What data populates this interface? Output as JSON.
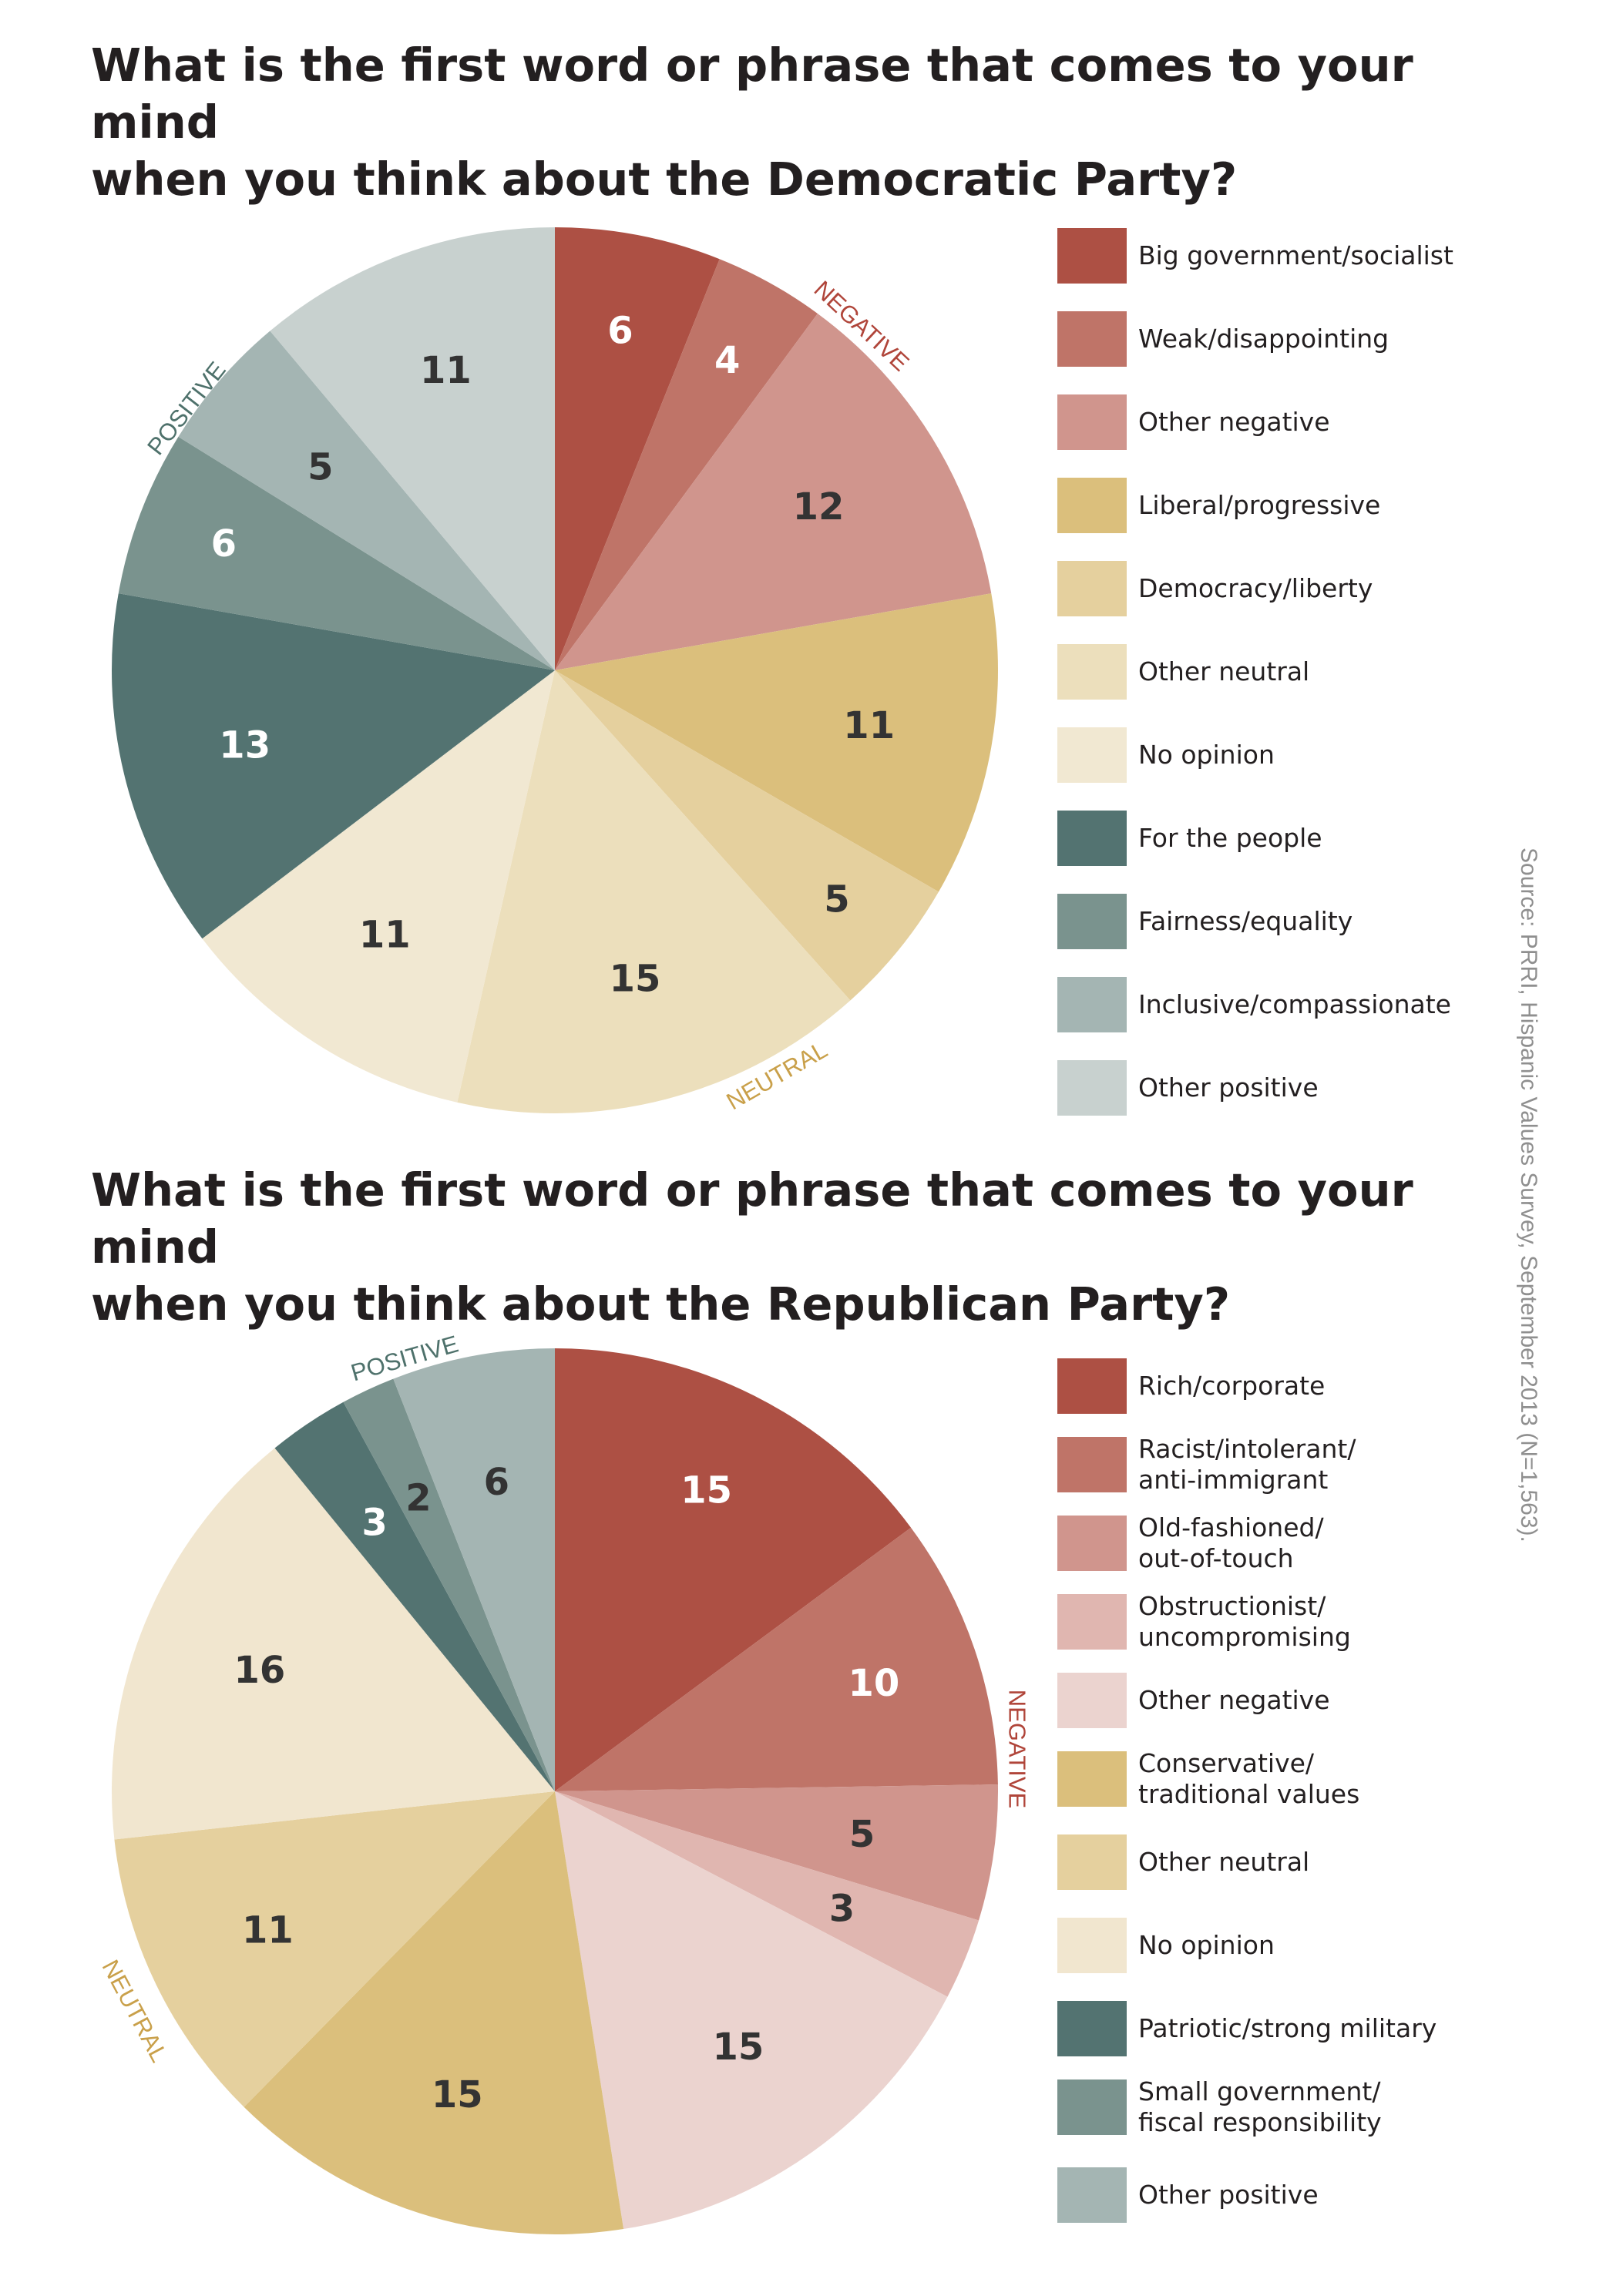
{
  "source": "Source: PRRI, Hispanic Values Survey, September 2013 (N=1,563).",
  "chart_data": [
    {
      "type": "pie",
      "title": "What is the first word or phrase that comes to your mind\nwhen you think about the Democratic Party?",
      "slices": [
        {
          "label": "Big government/socialist",
          "value": 6,
          "color": "#ad5044",
          "text_color": "#ffffff"
        },
        {
          "label": "Weak/disappointing",
          "value": 4,
          "color": "#bf7468",
          "text_color": "#ffffff"
        },
        {
          "label": "Other negative",
          "value": 12,
          "color": "#d0958d",
          "text_color": "#333333"
        },
        {
          "label": "Liberal/progressive",
          "value": 11,
          "color": "#dbbf7c",
          "text_color": "#333333"
        },
        {
          "label": "Democracy/liberty",
          "value": 5,
          "color": "#e5d09e",
          "text_color": "#333333"
        },
        {
          "label": "Other neutral",
          "value": 15,
          "color": "#ecdfbc",
          "text_color": "#333333"
        },
        {
          "label": "No opinion",
          "value": 11,
          "color": "#f1e8d2",
          "text_color": "#333333"
        },
        {
          "label": "For the people",
          "value": 13,
          "color": "#537371",
          "text_color": "#ffffff"
        },
        {
          "label": "Fairness/equality",
          "value": 6,
          "color": "#7a938e",
          "text_color": "#ffffff"
        },
        {
          "label": "Inclusive/compassionate",
          "value": 5,
          "color": "#a4b5b3",
          "text_color": "#333333"
        },
        {
          "label": "Other positive",
          "value": 11,
          "color": "#c8d1cf",
          "text_color": "#333333"
        }
      ],
      "group_labels": [
        {
          "text": "NEGATIVE",
          "color": "#b0453a"
        },
        {
          "text": "NEUTRAL",
          "color": "#c9a04a"
        },
        {
          "text": "POSITIVE",
          "color": "#4e716b"
        }
      ]
    },
    {
      "type": "pie",
      "title": "What is the first word or phrase that comes to your mind\nwhen you think about the Republican Party?",
      "slices": [
        {
          "label": "Rich/corporate",
          "value": 15,
          "color": "#ad5044",
          "text_color": "#ffffff"
        },
        {
          "label": "Racist/intolerant/\nanti-immigrant",
          "value": 10,
          "color": "#bf7468",
          "text_color": "#ffffff"
        },
        {
          "label": "Old-fashioned/\nout-of-touch",
          "value": 5,
          "color": "#d0958d",
          "text_color": "#333333"
        },
        {
          "label": "Obstructionist/\nuncompromising",
          "value": 3,
          "color": "#e0b6b0",
          "text_color": "#333333"
        },
        {
          "label": "Other negative",
          "value": 15,
          "color": "#ebd3cf",
          "text_color": "#333333"
        },
        {
          "label": "Conservative/\ntraditional values",
          "value": 15,
          "color": "#dbbf7c",
          "text_color": "#333333"
        },
        {
          "label": "Other neutral",
          "value": 11,
          "color": "#e5d09e",
          "text_color": "#333333"
        },
        {
          "label": "No opinion",
          "value": 16,
          "color": "#f1e6cf",
          "text_color": "#333333"
        },
        {
          "label": "Patriotic/strong military",
          "value": 3,
          "color": "#537371",
          "text_color": "#ffffff"
        },
        {
          "label": "Small government/\nfiscal responsibility",
          "value": 2,
          "color": "#7a938e",
          "text_color": "#333333"
        },
        {
          "label": "Other positive",
          "value": 6,
          "color": "#a4b5b3",
          "text_color": "#333333"
        }
      ],
      "group_labels": [
        {
          "text": "NEGATIVE",
          "color": "#b0453a"
        },
        {
          "text": "NEUTRAL",
          "color": "#c9a04a"
        },
        {
          "text": "POSITIVE",
          "color": "#4e716b"
        }
      ]
    }
  ]
}
